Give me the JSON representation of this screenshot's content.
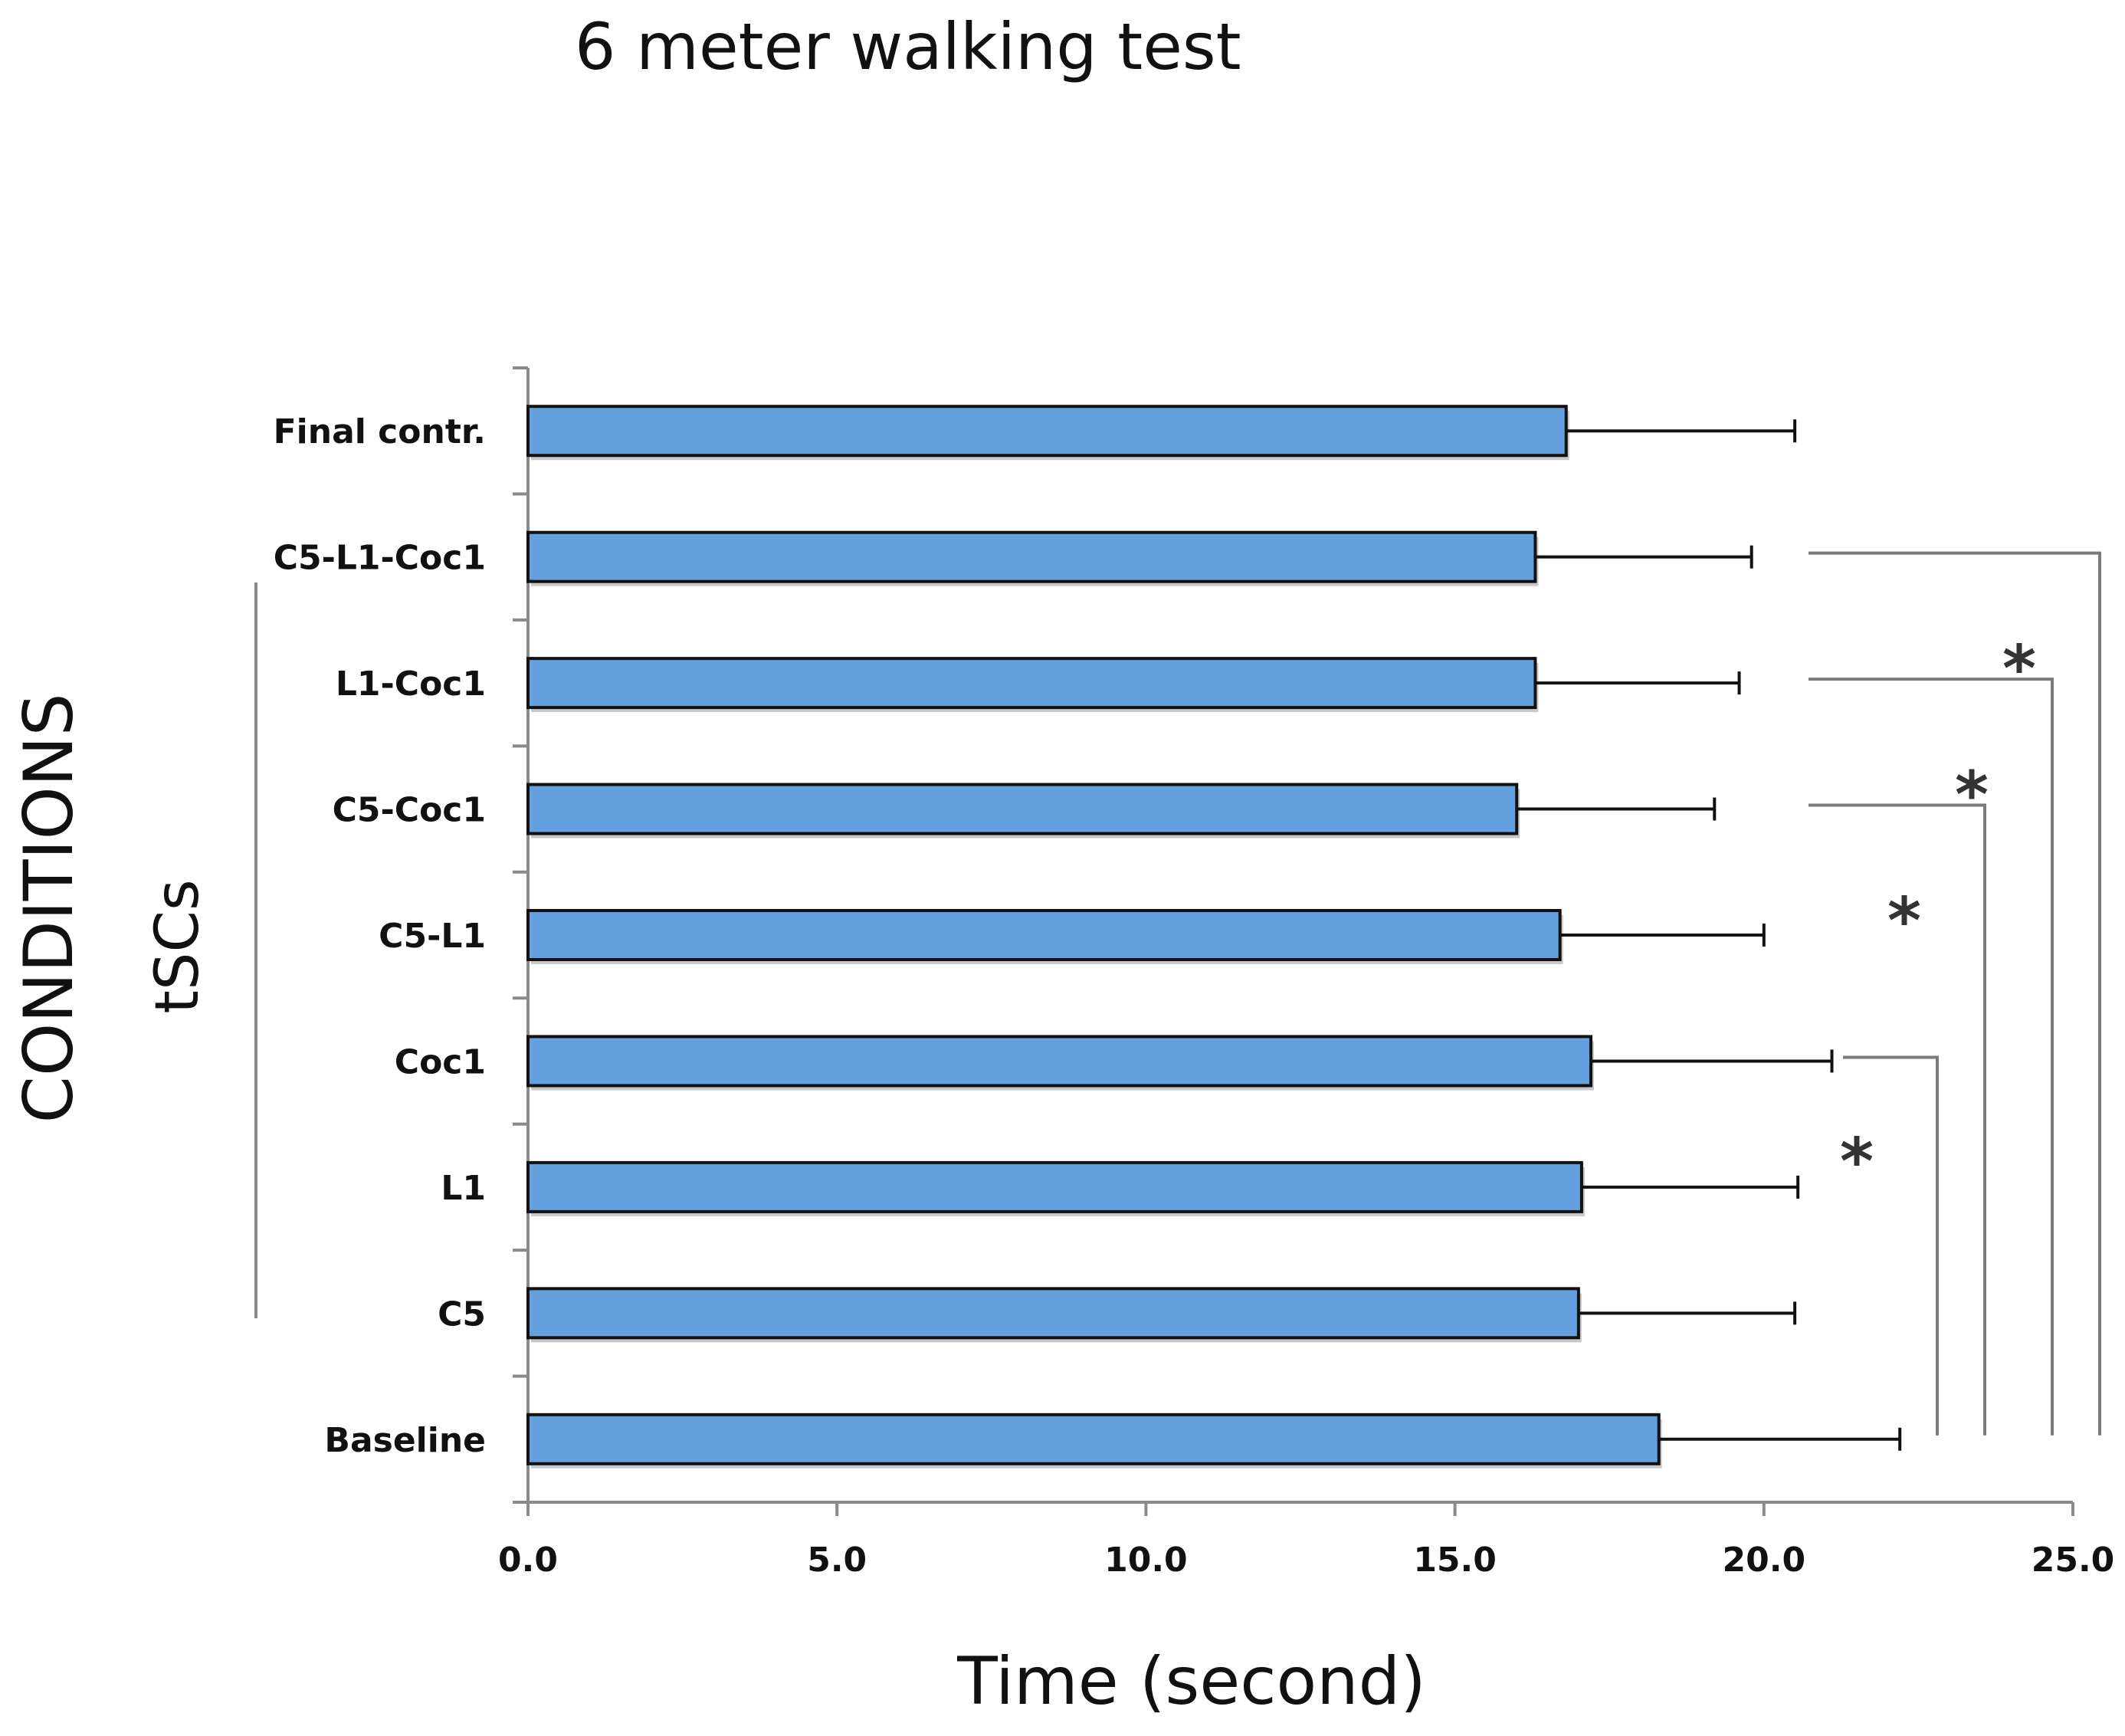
{
  "chart_data": {
    "type": "bar",
    "orientation": "horizontal",
    "title": "6 meter walking test",
    "xlabel": "Time (second)",
    "ylabel": "CONDITIONS",
    "group_label": "tSCs",
    "categories": [
      "Final contr.",
      "C5-L1-Coc1",
      "L1-Coc1",
      "C5-Coc1",
      "C5-L1",
      "Coc1",
      "L1",
      "C5",
      "Baseline"
    ],
    "series": [
      {
        "values": [
          16.8,
          16.3,
          16.3,
          16.0,
          16.7,
          17.2,
          17.05,
          17.0,
          18.3
        ],
        "errors": [
          3.7,
          3.5,
          3.3,
          3.2,
          3.3,
          3.9,
          3.5,
          3.5,
          3.9
        ]
      }
    ],
    "xlim": [
      0,
      25
    ],
    "xticks": [
      "0.0",
      "5.0",
      "10.0",
      "15.0",
      "20.0",
      "25.0"
    ],
    "grid": false,
    "bar_color": "#64a0de",
    "significance": [
      {
        "from": "Coc1",
        "to": "Baseline",
        "label": "*"
      },
      {
        "from": "C5-Coc1",
        "to": "Baseline",
        "label": "*"
      },
      {
        "from": "L1-Coc1",
        "to": "Baseline",
        "label": "*"
      },
      {
        "from": "C5-L1-Coc1",
        "to": "Baseline",
        "label": "*"
      }
    ]
  }
}
